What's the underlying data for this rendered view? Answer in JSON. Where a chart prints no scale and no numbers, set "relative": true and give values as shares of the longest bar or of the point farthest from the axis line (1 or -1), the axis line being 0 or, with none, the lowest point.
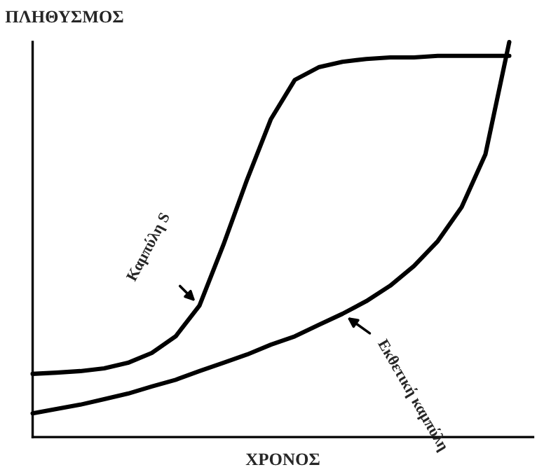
{
  "chart_data": {
    "type": "line",
    "relative": true,
    "xlabel": "ΧΡΟΝΟΣ",
    "ylabel": "ΠΛΗΘΥΣΜΟΣ",
    "categories": [
      null,
      null,
      null,
      null,
      null,
      null,
      null,
      null,
      null,
      null,
      null,
      null,
      null,
      null,
      null,
      null,
      null,
      null,
      null,
      null,
      null
    ],
    "series": [
      {
        "color": "#000000",
        "values": [
          0.16,
          0.163,
          0.167,
          0.174,
          0.188,
          0.213,
          0.255,
          0.333,
          0.486,
          0.652,
          0.805,
          0.904,
          0.936,
          0.95,
          0.957,
          0.961,
          0.961,
          0.965,
          0.965,
          0.965,
          0.965
        ]
      },
      {
        "color": "#000000",
        "values": [
          0.06,
          0.071,
          0.082,
          0.096,
          0.11,
          0.128,
          0.145,
          0.167,
          0.188,
          0.209,
          0.234,
          0.255,
          0.284,
          0.312,
          0.344,
          0.383,
          0.433,
          0.496,
          0.582,
          0.716,
          1.0
        ]
      }
    ],
    "annotations": [
      "Καμπύλη S",
      "Εκθετική καμπύλη"
    ],
    "legend": false,
    "marker": "none",
    "line_style": "solid"
  }
}
